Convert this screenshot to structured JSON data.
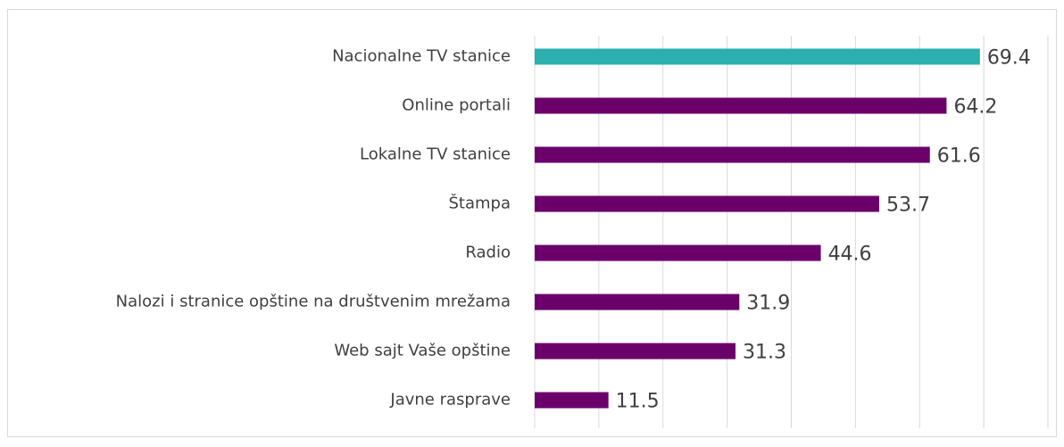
{
  "chart_data": {
    "type": "barh",
    "categories": [
      "Nacionalne TV stanice",
      "Online portali",
      "Lokalne TV stanice",
      "Štampa",
      "Radio",
      "Nalozi i stranice opštine na društvenim mrežama",
      "Web sajt Vaše opštine",
      "Javne rasprave"
    ],
    "values": [
      69.4,
      64.2,
      61.6,
      53.7,
      44.6,
      31.9,
      31.3,
      11.5
    ],
    "colors": [
      "#2ab0ad",
      "#6b006b",
      "#6b006b",
      "#6b006b",
      "#6b006b",
      "#6b006b",
      "#6b006b",
      "#6b006b"
    ],
    "xlim": [
      0,
      80
    ],
    "xticks": [
      0,
      10,
      20,
      30,
      40,
      50,
      60,
      70,
      80
    ],
    "grid": true
  }
}
